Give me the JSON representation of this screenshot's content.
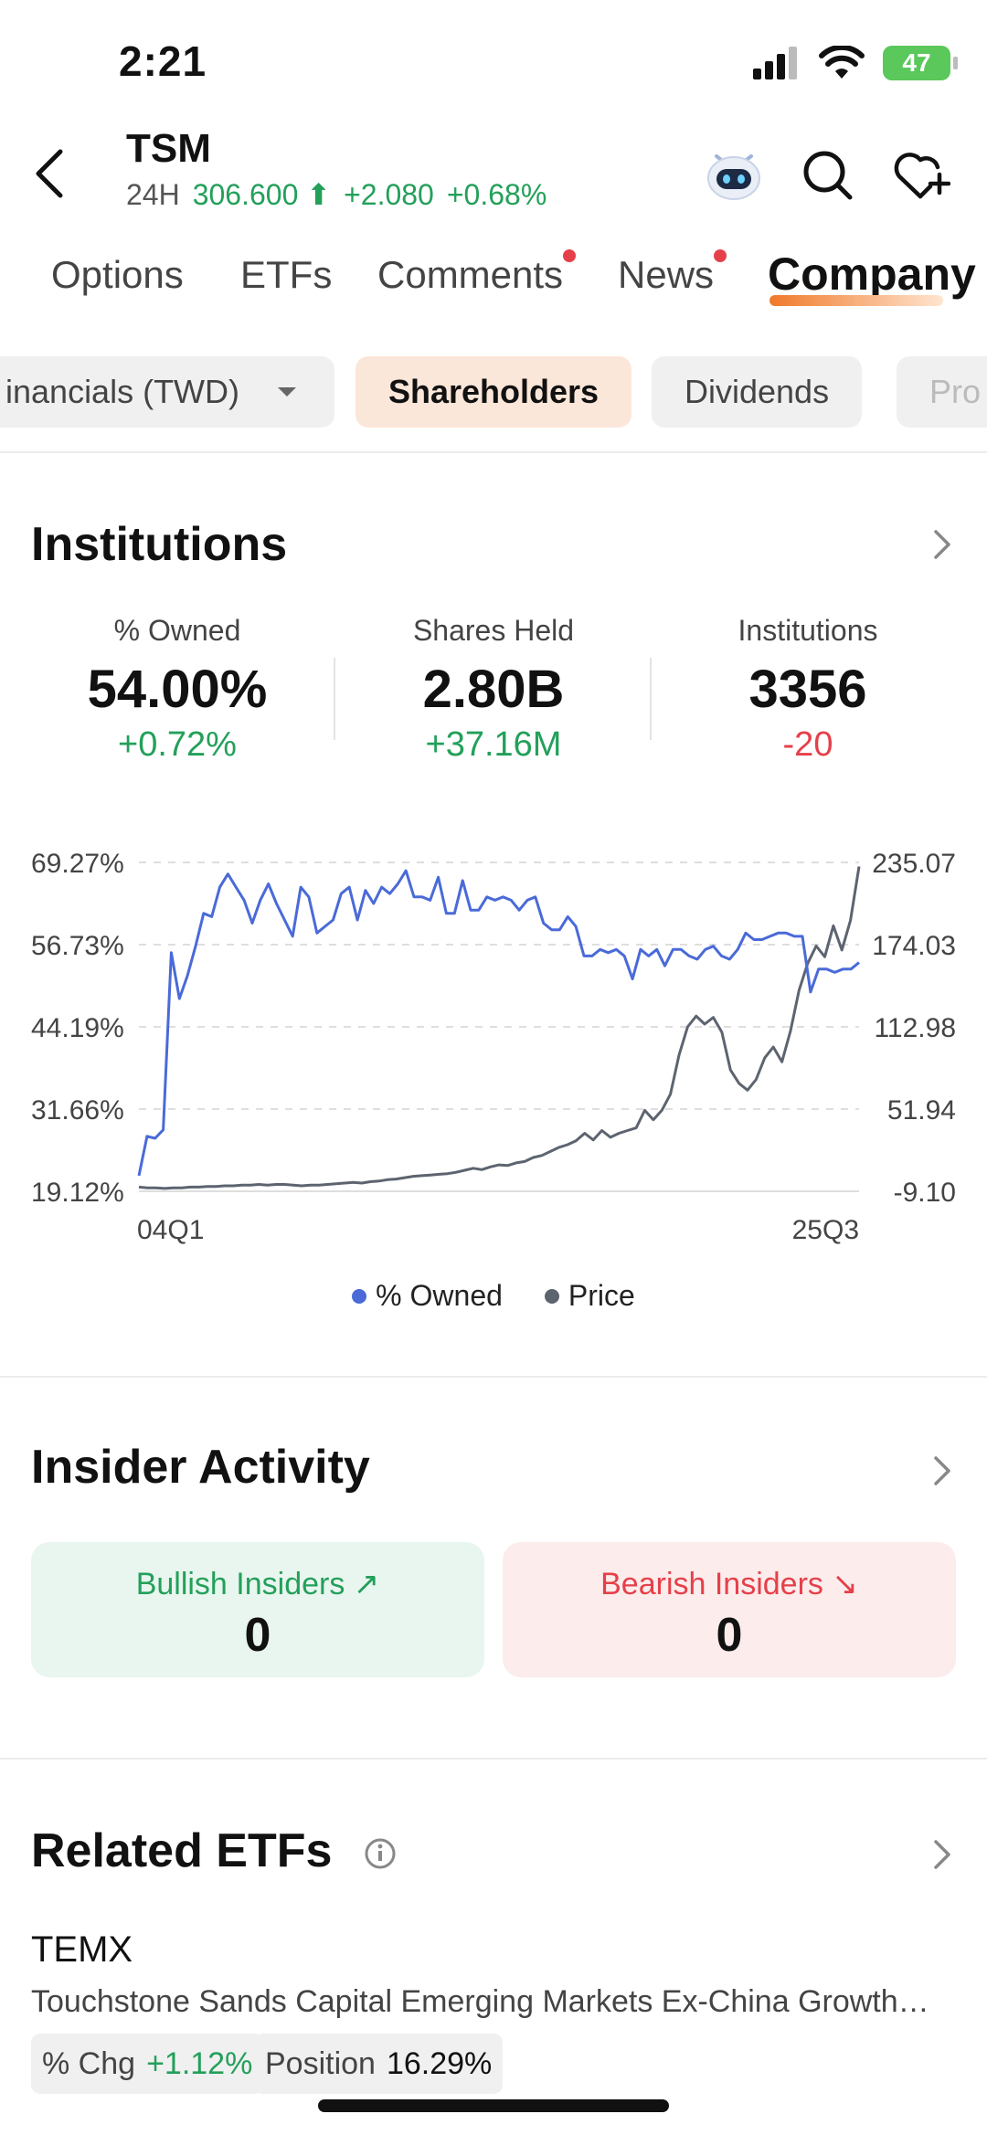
{
  "status": {
    "time": "2:21",
    "battery": "47"
  },
  "header": {
    "ticker": "TSM",
    "session": "24H",
    "price": "306.600",
    "change": "+2.080",
    "change_pct": "+0.68%",
    "icons": [
      "back-icon",
      "assistant-robot-icon",
      "search-icon",
      "heart-plus-icon"
    ]
  },
  "tabs": [
    {
      "label": "Options"
    },
    {
      "label": "ETFs"
    },
    {
      "label": "Comments",
      "dot": true
    },
    {
      "label": "News",
      "dot": true
    },
    {
      "label": "Company",
      "active": true
    }
  ],
  "subtabs": [
    {
      "label": "inancials (TWD)",
      "dropdown": true
    },
    {
      "label": "Shareholders",
      "active": true
    },
    {
      "label": "Dividends"
    },
    {
      "label": "Pro"
    }
  ],
  "institutions": {
    "title": "Institutions",
    "stats": [
      {
        "label": "% Owned",
        "value": "54.00%",
        "change": "+0.72%"
      },
      {
        "label": "Shares Held",
        "value": "2.80B",
        "change": "+37.16M"
      },
      {
        "label": "Institutions",
        "value": "3356",
        "change": "-20"
      }
    ]
  },
  "chart_data": {
    "type": "line",
    "x_start": "04Q1",
    "x_end": "25Q3",
    "left_ticks": [
      "69.27%",
      "56.73%",
      "44.19%",
      "31.66%",
      "19.12%"
    ],
    "right_ticks": [
      "235.07",
      "174.03",
      "112.98",
      "51.94",
      "-9.10"
    ],
    "ylim_left": [
      19.12,
      69.27
    ],
    "ylim_right": [
      -9.1,
      235.07
    ],
    "legend": [
      "% Owned",
      "Price"
    ],
    "colors": {
      "owned": "#4a6ad8",
      "price": "#5d6470"
    },
    "series": [
      {
        "name": "% Owned",
        "axis": "left",
        "values": [
          21.5,
          27.5,
          27.2,
          28.5,
          55.5,
          48.5,
          52.0,
          56.5,
          61.5,
          61.0,
          65.5,
          67.5,
          65.5,
          63.5,
          60.0,
          63.5,
          66.0,
          63.0,
          60.5,
          58.0,
          65.5,
          64.0,
          58.5,
          59.5,
          60.5,
          64.5,
          65.5,
          60.5,
          65.0,
          63.0,
          65.5,
          64.5,
          66.0,
          68.0,
          64.0,
          64.0,
          63.5,
          67.0,
          61.5,
          61.5,
          66.5,
          62.0,
          62.0,
          64.0,
          63.5,
          64.0,
          63.5,
          62.0,
          63.5,
          64.0,
          60.0,
          59.0,
          59.0,
          61.0,
          59.5,
          55.0,
          55.0,
          56.0,
          55.5,
          56.0,
          55.0,
          51.5,
          56.0,
          55.0,
          56.0,
          53.5,
          56.0,
          56.0,
          55.0,
          54.5,
          56.0,
          56.5,
          55.0,
          54.5,
          56.0,
          58.5,
          57.5,
          57.5,
          58.0,
          58.5,
          58.5,
          58.0,
          58.0,
          49.5,
          53.0,
          53.0,
          52.5,
          53.0,
          53.0,
          54.0
        ]
      },
      {
        "name": "Price",
        "axis": "right",
        "values": [
          -6.0,
          -6.5,
          -6.5,
          -7.0,
          -6.5,
          -6.5,
          -6.0,
          -6.0,
          -5.5,
          -5.5,
          -5.0,
          -5.0,
          -4.5,
          -4.5,
          -4.0,
          -4.5,
          -4.0,
          -4.0,
          -4.5,
          -5.0,
          -4.5,
          -4.5,
          -4.0,
          -3.5,
          -3.0,
          -2.5,
          -3.0,
          -2.0,
          -1.5,
          -0.5,
          0.0,
          1.0,
          2.0,
          2.5,
          3.0,
          3.5,
          4.0,
          5.0,
          6.5,
          8.0,
          7.0,
          9.0,
          10.5,
          10.0,
          12.0,
          13.0,
          16.0,
          17.5,
          20.5,
          23.5,
          25.5,
          28.5,
          34.0,
          29.0,
          36.0,
          31.0,
          34.0,
          36.0,
          38.0,
          51.0,
          44.0,
          51.0,
          63.0,
          92.0,
          113.0,
          121.0,
          115.0,
          120.0,
          109.0,
          81.0,
          71.0,
          66.0,
          74.0,
          90.0,
          98.0,
          87.0,
          110.0,
          140.0,
          160.0,
          173.0,
          165.0,
          188.0,
          170.0,
          192.0,
          232.0
        ]
      }
    ]
  },
  "insider": {
    "title": "Insider Activity",
    "bullish_label": "Bullish Insiders",
    "bullish_value": "0",
    "bearish_label": "Bearish Insiders",
    "bearish_value": "0"
  },
  "etfs": {
    "title": "Related ETFs",
    "items": [
      {
        "ticker": "TEMX",
        "name": "Touchstone Sands Capital Emerging Markets Ex-China Growth…",
        "chg_label": "% Chg",
        "chg_value": "+1.12%",
        "pos_label": "Position",
        "pos_value": "16.29%"
      }
    ]
  }
}
